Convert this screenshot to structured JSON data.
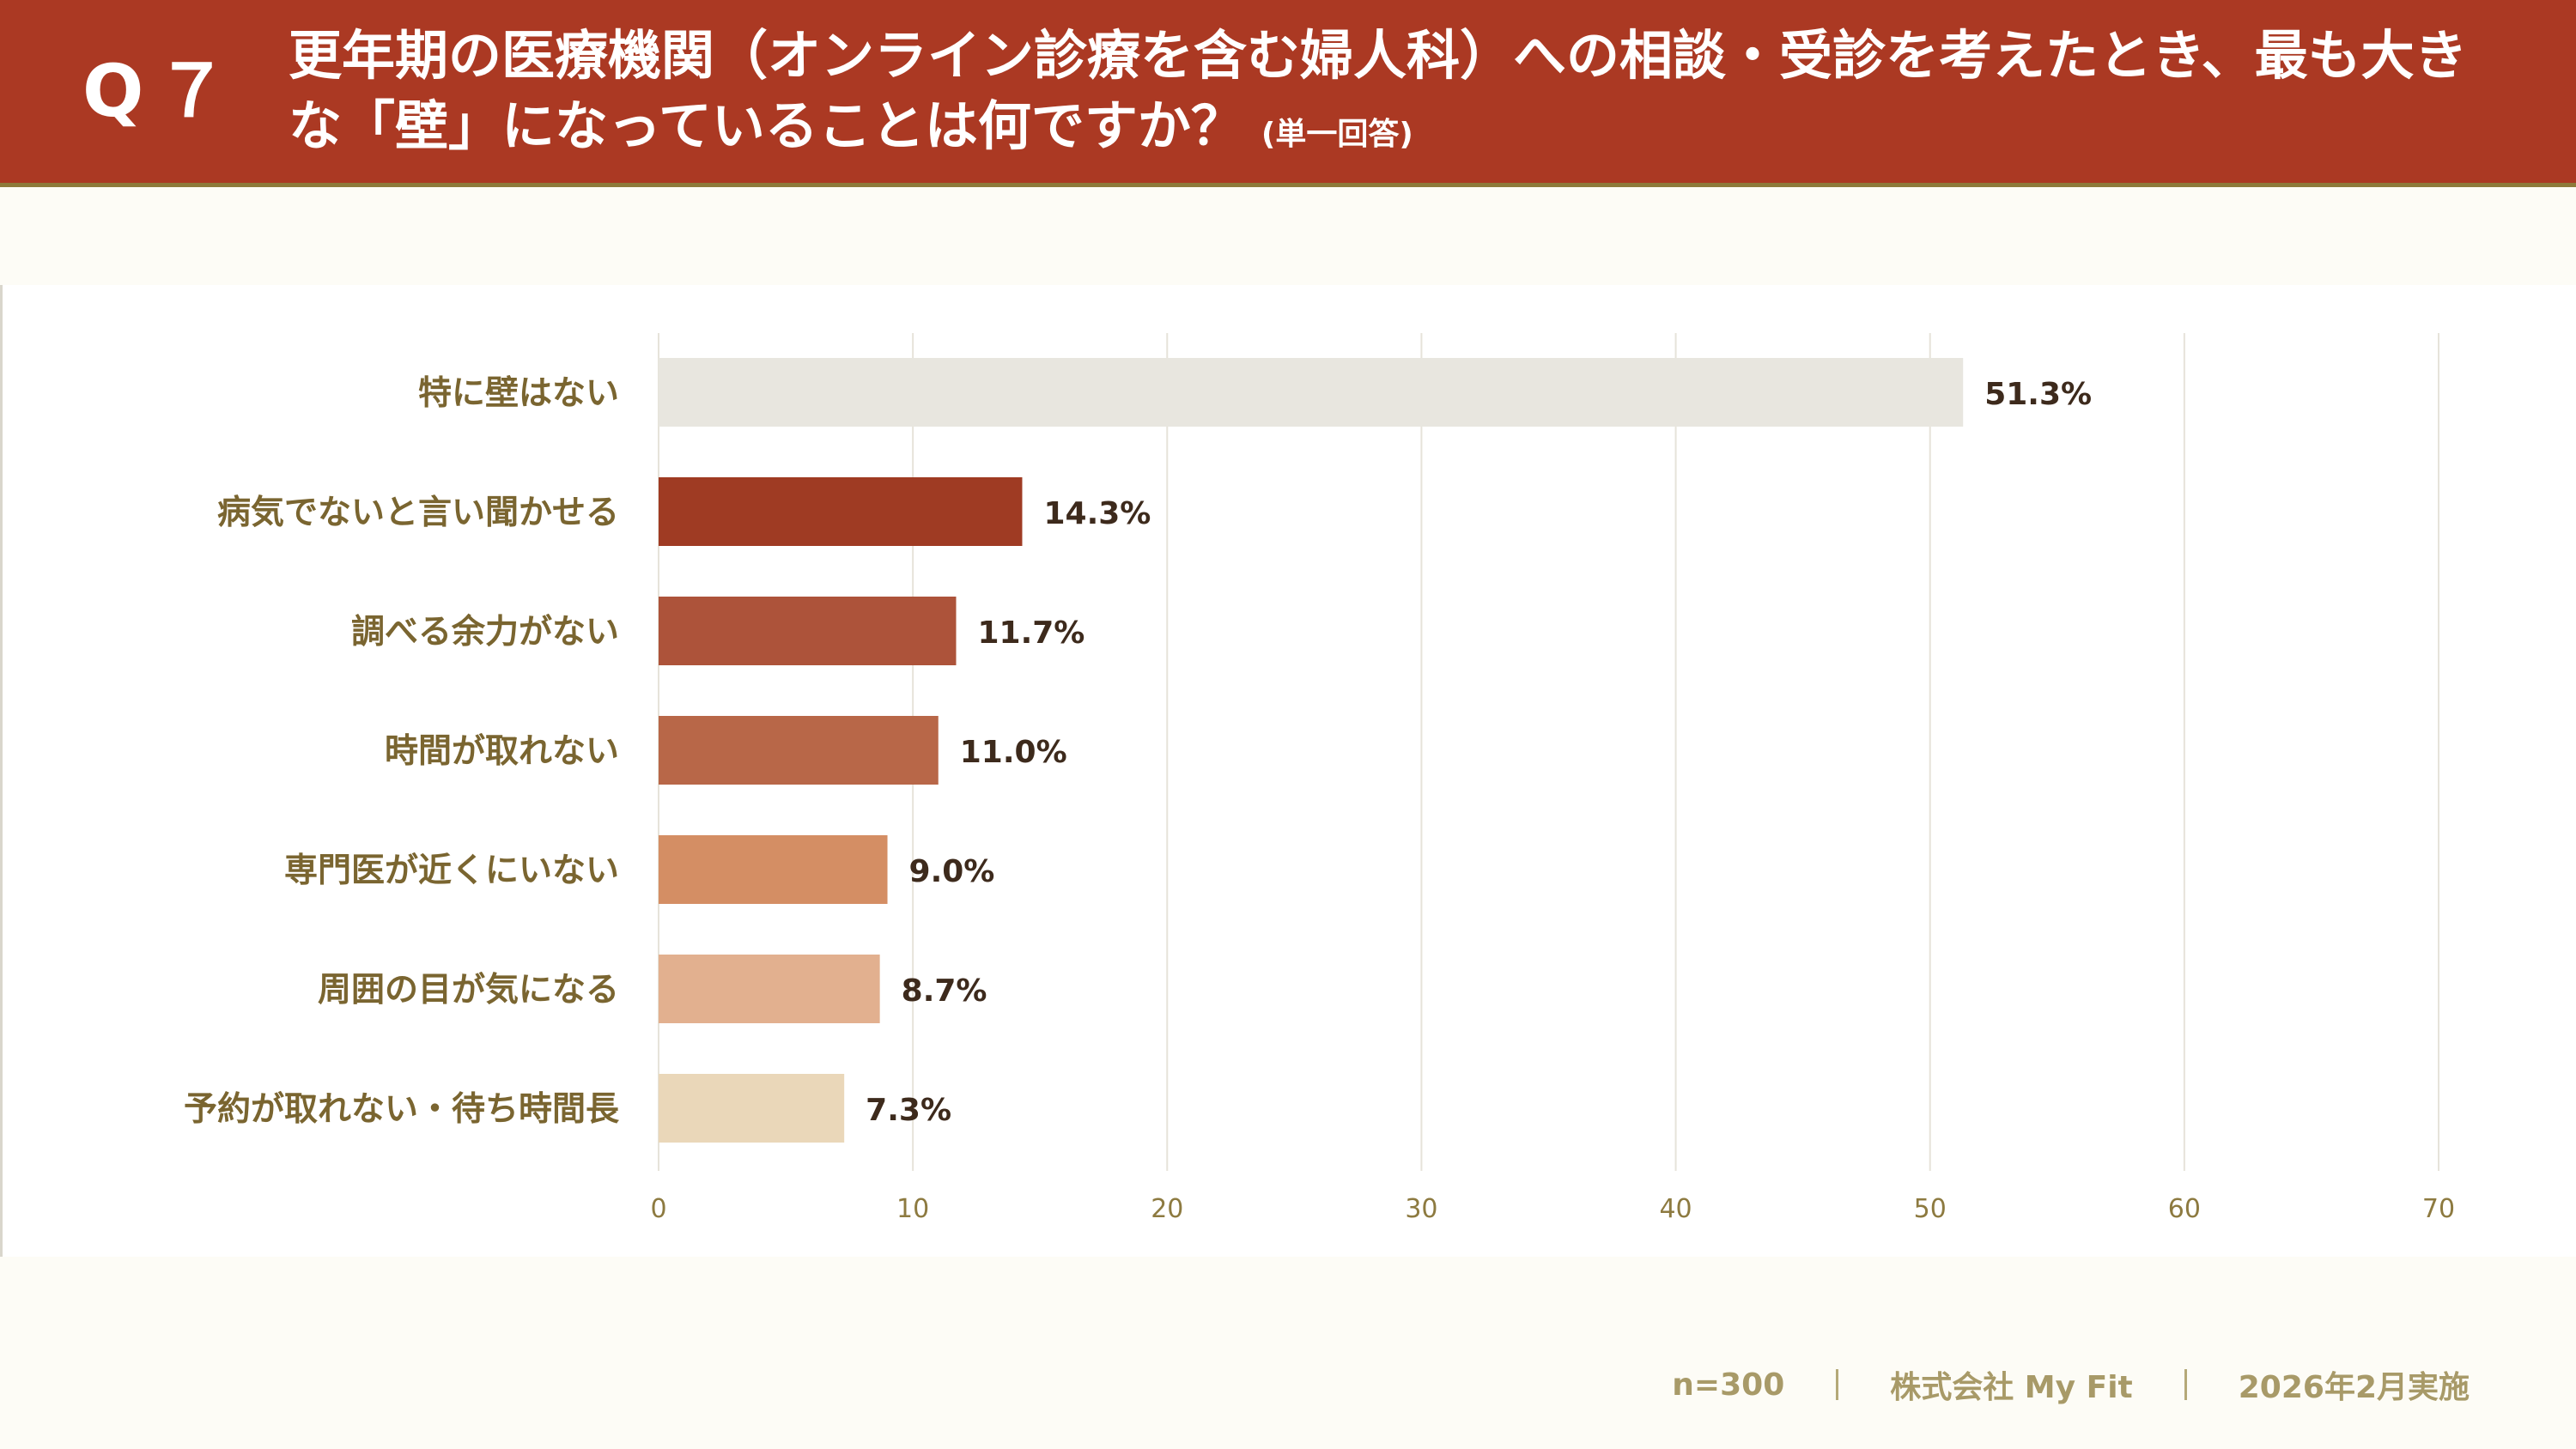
{
  "header": {
    "q_number": "Q７",
    "title": "更年期の医療機関（オンライン診療を含む婦人科）への相談・受診を考えたとき、最も大きな「壁」になっていることは何ですか？",
    "note": "(単一回答)"
  },
  "footer": {
    "sample": "n=300",
    "company": "株式会社 My Fit",
    "date": "2026年2月実施"
  },
  "colors": {
    "header_bg": "#ab3923",
    "bars": [
      "#e8e6df",
      "#9f3b23",
      "#ad533a",
      "#b86748",
      "#d48e64",
      "#e2b08f",
      "#ead7b9"
    ]
  },
  "chart_data": {
    "type": "bar",
    "orientation": "horizontal",
    "categories": [
      "特に壁はない",
      "病気でないと言い聞かせる",
      "調べる余力がない",
      "時間が取れない",
      "専門医が近くにいない",
      "周囲の目が気になる",
      "予約が取れない・待ち時間長"
    ],
    "values": [
      51.3,
      14.3,
      11.7,
      11.0,
      9.0,
      8.7,
      7.3
    ],
    "value_labels": [
      "51.3%",
      "14.3%",
      "11.7%",
      "11.0%",
      "9.0%",
      "8.7%",
      "7.3%"
    ],
    "xlim": [
      0,
      70
    ],
    "xticks": [
      "0",
      "10",
      "20",
      "30",
      "40",
      "50",
      "60",
      "70"
    ],
    "grid": true
  }
}
